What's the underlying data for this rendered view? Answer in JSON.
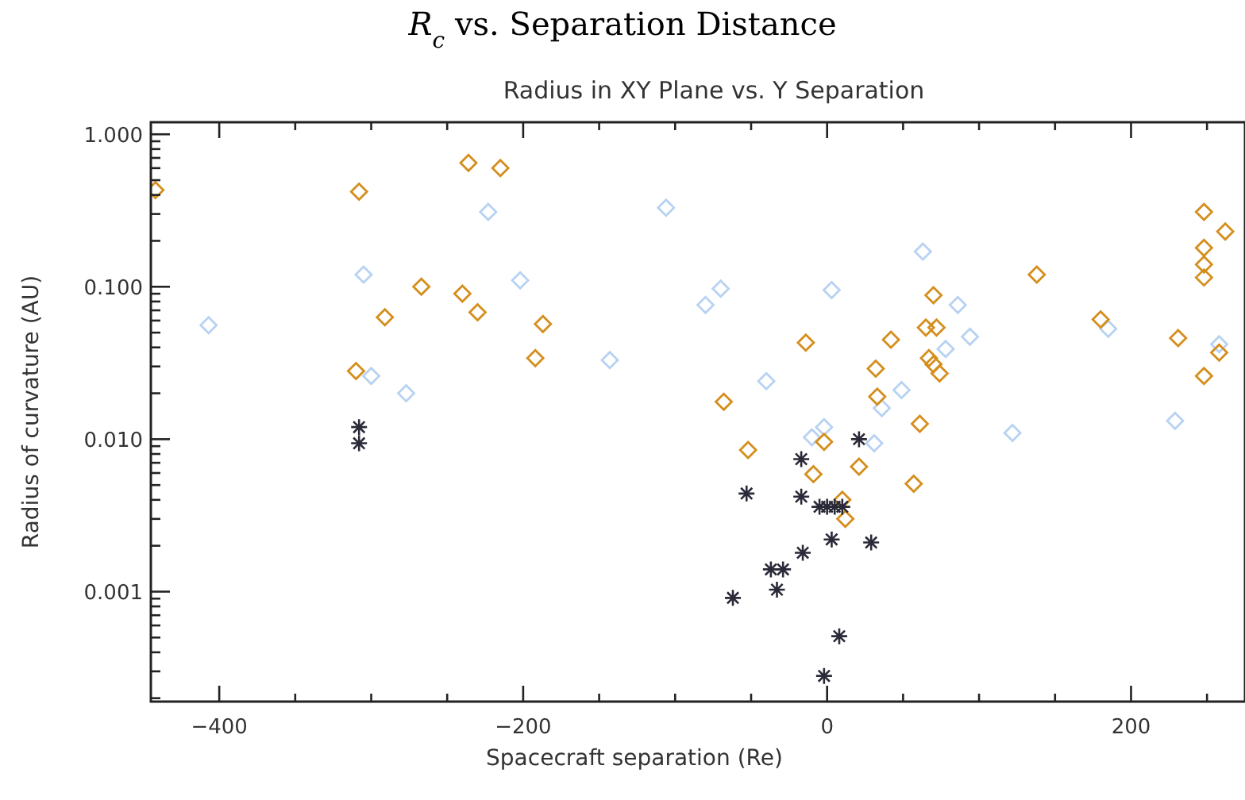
{
  "chart_data": {
    "type": "scatter",
    "title": "R$_{c}$ vs. Separation Distance",
    "subtitle": "Radius in XY Plane vs. Y Separation",
    "xlabel": "Spacecraft separation (Re)",
    "ylabel": "Radius of curvature (AU)",
    "log": "y",
    "grid": false,
    "xlim": [
      -445,
      275
    ],
    "ylim": [
      0.00019,
      1.2
    ],
    "xticks": [
      {
        "value": -400,
        "label": "−400"
      },
      {
        "value": -350,
        "label": null
      },
      {
        "value": -300,
        "label": null
      },
      {
        "value": -250,
        "label": null
      },
      {
        "value": -200,
        "label": "−200"
      },
      {
        "value": -150,
        "label": null
      },
      {
        "value": -100,
        "label": null
      },
      {
        "value": -50,
        "label": null
      },
      0,
      {
        "value": 50,
        "label": null
      },
      {
        "value": 100,
        "label": null
      },
      {
        "value": 150,
        "label": null
      },
      200,
      {
        "value": 250,
        "label": null
      }
    ],
    "yticks": [
      {
        "value": 0.0002,
        "label": null
      },
      {
        "value": 0.0003,
        "label": null
      },
      {
        "value": 0.0004,
        "label": null
      },
      {
        "value": 0.0005,
        "label": null
      },
      {
        "value": 0.0006,
        "label": null
      },
      {
        "value": 0.0007,
        "label": null
      },
      {
        "value": 0.0008,
        "label": null
      },
      {
        "value": 0.0009,
        "label": null
      },
      {
        "value": 0.001,
        "label": "0.001"
      },
      {
        "value": 0.002,
        "label": null
      },
      {
        "value": 0.003,
        "label": null
      },
      {
        "value": 0.004,
        "label": null
      },
      {
        "value": 0.005,
        "label": null
      },
      {
        "value": 0.006,
        "label": null
      },
      {
        "value": 0.007,
        "label": null
      },
      {
        "value": 0.008,
        "label": null
      },
      {
        "value": 0.009,
        "label": null
      },
      {
        "value": 0.01,
        "label": "0.010"
      },
      {
        "value": 0.02,
        "label": null
      },
      {
        "value": 0.03,
        "label": null
      },
      {
        "value": 0.04,
        "label": null
      },
      {
        "value": 0.05,
        "label": null
      },
      {
        "value": 0.06,
        "label": null
      },
      {
        "value": 0.07,
        "label": null
      },
      {
        "value": 0.08,
        "label": null
      },
      {
        "value": 0.09,
        "label": null
      },
      {
        "value": 0.1,
        "label": "0.100"
      },
      {
        "value": 0.2,
        "label": null
      },
      {
        "value": 0.3,
        "label": null
      },
      {
        "value": 0.4,
        "label": null
      },
      {
        "value": 0.5,
        "label": null
      },
      {
        "value": 0.6,
        "label": null
      },
      {
        "value": 0.7,
        "label": null
      },
      {
        "value": 0.8,
        "label": null
      },
      {
        "value": 0.9,
        "label": null
      },
      {
        "value": 1,
        "label": "1.000"
      }
    ],
    "series": [
      {
        "color": "#b8d2f2",
        "marker": "diamond",
        "x": [
          -407,
          -300,
          -277,
          -223,
          -106,
          -202,
          -143,
          -305,
          63,
          -70,
          3,
          86,
          94,
          78,
          -40,
          49,
          36,
          -2,
          -10,
          31,
          122,
          229,
          185,
          258,
          -80
        ],
        "values": [
          0.056,
          0.026,
          0.02,
          0.31,
          0.33,
          0.11,
          0.033,
          0.12,
          0.17,
          0.097,
          0.095,
          0.076,
          0.047,
          0.039,
          0.024,
          0.021,
          0.016,
          0.012,
          0.0103,
          0.0094,
          0.011,
          0.0132,
          0.053,
          0.042,
          0.076
        ]
      },
      {
        "color": "#d58e1c",
        "marker": "diamond",
        "x": [
          -442,
          -308,
          -236,
          -215,
          -267,
          -240,
          -230,
          -291,
          -187,
          -192,
          -310,
          138,
          248,
          248,
          248,
          248,
          262,
          70,
          65,
          72,
          42,
          -14,
          67,
          70,
          74,
          32,
          180,
          231,
          258,
          248,
          -68,
          33,
          61,
          -52,
          -2,
          21,
          -9,
          57,
          10,
          12
        ],
        "values": [
          0.43,
          0.42,
          0.65,
          0.6,
          0.1,
          0.09,
          0.068,
          0.063,
          0.057,
          0.034,
          0.028,
          0.12,
          0.31,
          0.18,
          0.14,
          0.115,
          0.23,
          0.088,
          0.054,
          0.054,
          0.045,
          0.043,
          0.034,
          0.031,
          0.027,
          0.029,
          0.061,
          0.046,
          0.037,
          0.026,
          0.0176,
          0.019,
          0.0126,
          0.0085,
          0.0096,
          0.0066,
          0.0059,
          0.0051,
          0.004,
          0.003
        ]
      },
      {
        "color": "#2a2a38",
        "marker": "cross",
        "x": [
          -308,
          -308,
          21,
          -17,
          -53,
          -17,
          -5,
          0,
          5,
          10,
          3,
          29,
          -16,
          -37,
          -29,
          -33,
          -62,
          8,
          -2
        ],
        "values": [
          0.012,
          0.0094,
          0.01,
          0.0074,
          0.0044,
          0.0042,
          0.0036,
          0.0036,
          0.0036,
          0.0036,
          0.0022,
          0.0021,
          0.0018,
          0.0014,
          0.0014,
          0.00103,
          0.00091,
          0.00051,
          0.00028
        ]
      }
    ]
  }
}
